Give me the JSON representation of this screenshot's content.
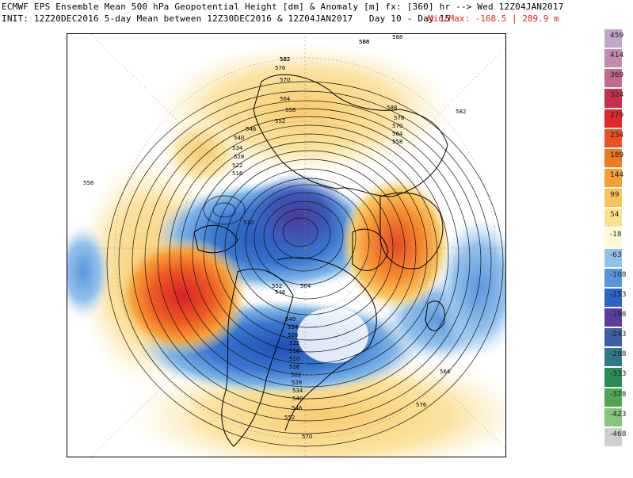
{
  "header": {
    "line1": "ECMWF EPS Ensemble Mean 500 hPa Geopotential Height [dm] & Anomaly [m] fx: [360] hr --> Wed 12Z04JAN2017",
    "line2": "INIT: 12Z20DEC2016 5-day Mean between 12Z30DEC2016 & 12Z04JAN2017   Day 10 - Day 15",
    "minmax": "Min/Max: -168.5 | 289.9 m"
  },
  "map": {
    "projection": "north polar stereographic",
    "contour_labels": [
      "588",
      "582",
      "576",
      "570",
      "564",
      "558",
      "552",
      "546",
      "540",
      "534",
      "528",
      "522",
      "516",
      "510",
      "504",
      "588",
      "576",
      "570",
      "564",
      "558",
      "552",
      "546",
      "540",
      "534",
      "528",
      "522",
      "516",
      "510",
      "516",
      "522",
      "528",
      "534",
      "540",
      "546",
      "552",
      "558",
      "564",
      "570",
      "576",
      "582",
      "588",
      "588",
      "582"
    ]
  },
  "colorbar": {
    "labels": [
      "459",
      "414",
      "369",
      "324",
      "279",
      "234",
      "189",
      "144",
      "99",
      "54",
      "-18",
      "-63",
      "-108",
      "-153",
      "-198",
      "-243",
      "-288",
      "-333",
      "-378",
      "-423",
      "-468"
    ],
    "colors": [
      "#c2a6c8",
      "#c48aaf",
      "#c06a8e",
      "#c8304a",
      "#de2a2a",
      "#ea5020",
      "#f0781e",
      "#f5a035",
      "#fac458",
      "#fae18e",
      "#fdf9d6",
      "#8ec4ec",
      "#5896dc",
      "#2e62c4",
      "#5a3e9c",
      "#3f5ea6",
      "#2f7a8a",
      "#2a8c52",
      "#4ea650",
      "#86c57c",
      "#cfcfcf"
    ]
  }
}
